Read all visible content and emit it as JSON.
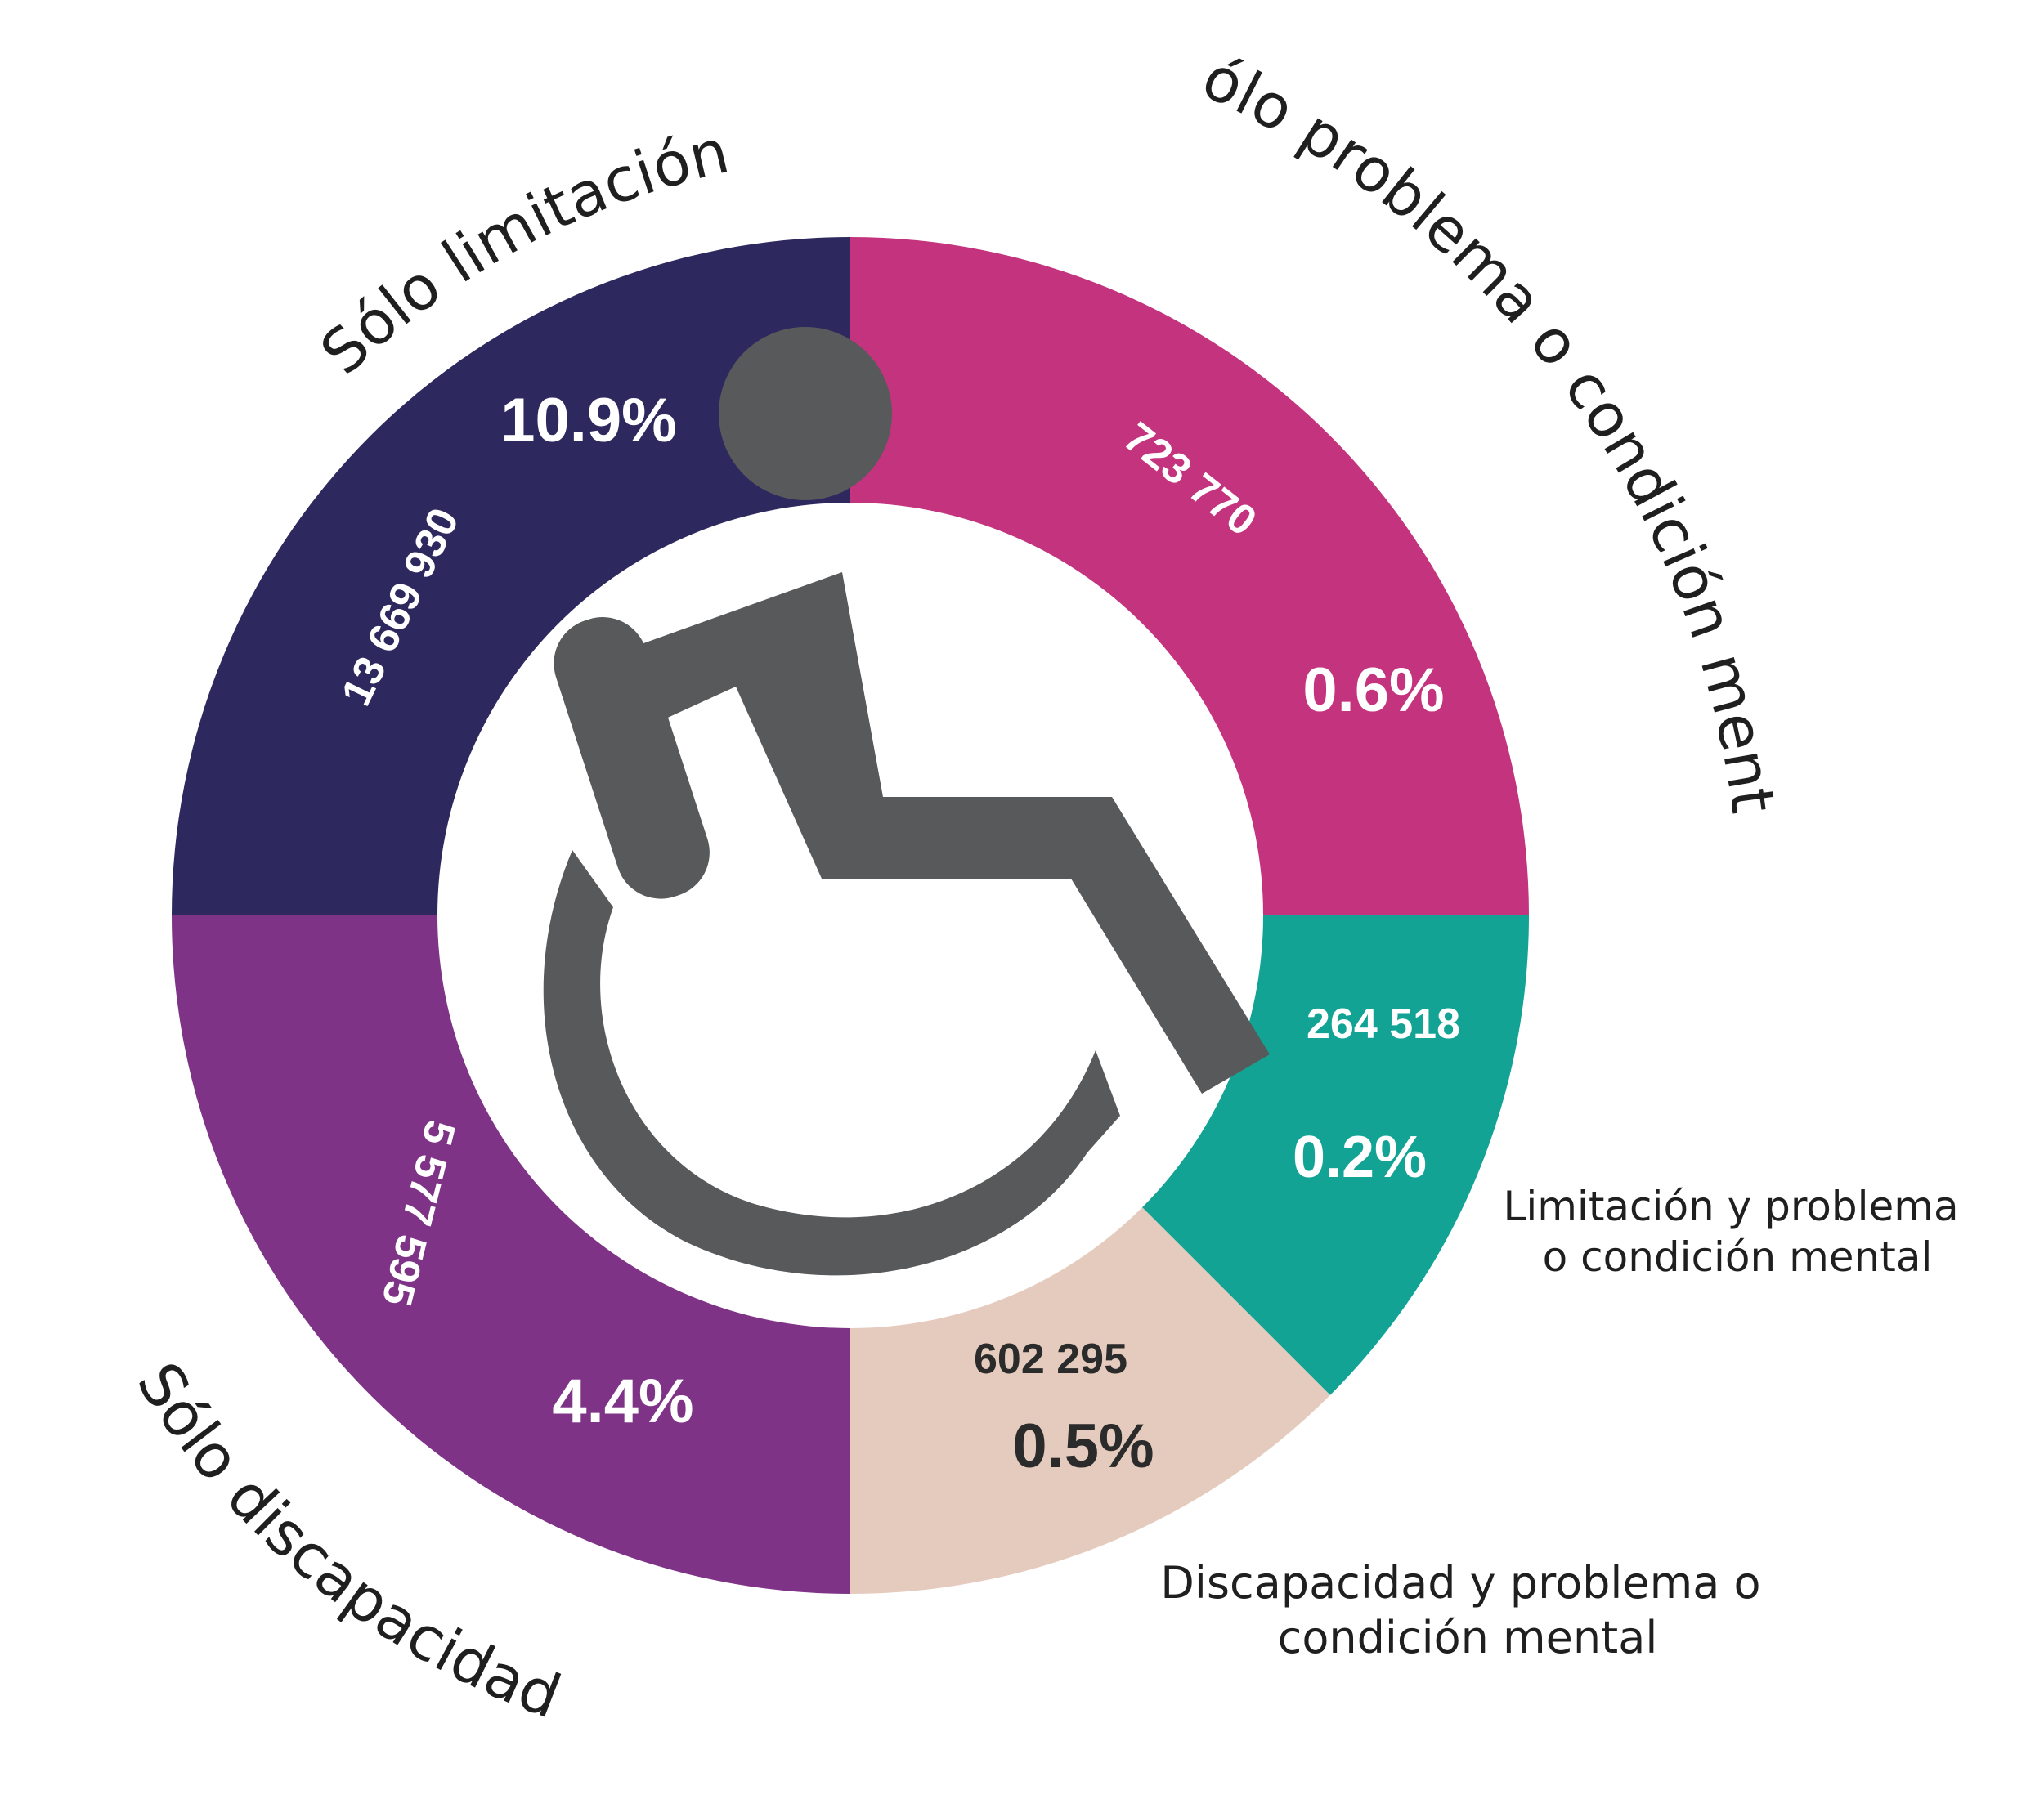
{
  "chart_data": {
    "type": "pie",
    "style": "donut",
    "slices": [
      {
        "label": "Sólo problema o condición mental",
        "count": "723 770",
        "percent": "0.6%",
        "color": "#c4337d",
        "text_color": "#ffffff"
      },
      {
        "label": "Limitación y problema o condición mental",
        "count": "264 518",
        "percent": "0.2%",
        "color": "#12a394",
        "text_color": "#ffffff"
      },
      {
        "label": "Discapacidad y problema o condición mental",
        "count": "602 295",
        "percent": "0.5%",
        "color": "#e5cbbd",
        "text_color": "#2b2b2b"
      },
      {
        "label": "Sólo discapacidad",
        "count": "5 577 595",
        "percent": "4.4%",
        "color": "#7e3387",
        "text_color": "#ffffff"
      },
      {
        "label": "Sólo limitación",
        "count": "13 669 930",
        "percent": "10.9%",
        "color": "#2d295e",
        "text_color": "#ffffff"
      }
    ],
    "center_icon": "wheelchair-icon",
    "center_icon_color": "#58595b"
  }
}
